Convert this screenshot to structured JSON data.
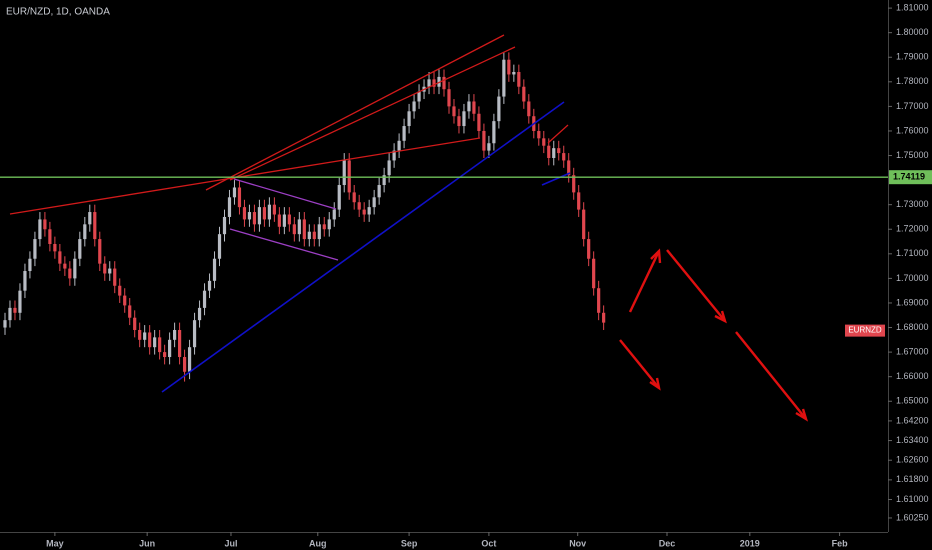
{
  "chart_data": {
    "type": "candlestick",
    "title": "EUR/NZD, 1D, OANDA",
    "symbol_tag": "EURNZD",
    "up_color": "#b8bcc4",
    "down_color": "#e0464e",
    "xlim": [
      -1,
      177
    ],
    "xticks": [
      {
        "value": 10,
        "label": "May"
      },
      {
        "value": 28.5,
        "label": "Jun"
      },
      {
        "value": 45.3,
        "label": "Jul"
      },
      {
        "value": 62.7,
        "label": "Aug"
      },
      {
        "value": 81,
        "label": "Sep"
      },
      {
        "value": 97,
        "label": "Oct"
      },
      {
        "value": 114.8,
        "label": "Nov"
      },
      {
        "value": 132.7,
        "label": "Dec"
      },
      {
        "value": 149.3,
        "label": "2019"
      },
      {
        "value": 167.3,
        "label": "Feb"
      }
    ],
    "ylim": [
      1.5976,
      1.8133
    ],
    "yticks": [
      {
        "value": 1.81,
        "label": "1.81000"
      },
      {
        "value": 1.8,
        "label": "1.80000"
      },
      {
        "value": 1.79,
        "label": "1.79000"
      },
      {
        "value": 1.78,
        "label": "1.78000"
      },
      {
        "value": 1.77,
        "label": "1.77000"
      },
      {
        "value": 1.76,
        "label": "1.76000"
      },
      {
        "value": 1.75,
        "label": "1.75000"
      },
      {
        "value": 1.73,
        "label": "1.73000"
      },
      {
        "value": 1.72,
        "label": "1.72000"
      },
      {
        "value": 1.71,
        "label": "1.71000"
      },
      {
        "value": 1.7,
        "label": "1.70000"
      },
      {
        "value": 1.69,
        "label": "1.69000"
      },
      {
        "value": 1.68,
        "label": "1.68000"
      },
      {
        "value": 1.67,
        "label": "1.67000"
      },
      {
        "value": 1.66,
        "label": "1.66000"
      },
      {
        "value": 1.65,
        "label": "1.65000"
      },
      {
        "value": 1.642,
        "label": "1.64200"
      },
      {
        "value": 1.634,
        "label": "1.63400"
      },
      {
        "value": 1.626,
        "label": "1.62600"
      },
      {
        "value": 1.618,
        "label": "1.61800"
      },
      {
        "value": 1.61,
        "label": "1.61000"
      },
      {
        "value": 1.6025,
        "label": "1.60250"
      }
    ],
    "price_line": {
      "value": 1.74119,
      "label": "1.74119",
      "color": "#6fbf5a"
    },
    "open": [
      1.68,
      1.683,
      1.688,
      1.686,
      1.695,
      1.703,
      1.708,
      1.716,
      1.724,
      1.72,
      1.714,
      1.711,
      1.706,
      1.704,
      1.7,
      1.708,
      1.716,
      1.722,
      1.727,
      1.716,
      1.706,
      1.702,
      1.704,
      1.697,
      1.693,
      1.689,
      1.684,
      1.679,
      1.675,
      1.678,
      1.672,
      1.676,
      1.67,
      1.668,
      1.675,
      1.679,
      1.668,
      1.662,
      1.672,
      1.683,
      1.688,
      1.695,
      1.699,
      1.708,
      1.718,
      1.725,
      1.733,
      1.737,
      1.729,
      1.724,
      1.727,
      1.722,
      1.729,
      1.724,
      1.73,
      1.726,
      1.721,
      1.726,
      1.722,
      1.718,
      1.724,
      1.716,
      1.719,
      1.716,
      1.722,
      1.72,
      1.724,
      1.728,
      1.738,
      1.748,
      1.735,
      1.731,
      1.728,
      1.726,
      1.729,
      1.733,
      1.738,
      1.742,
      1.748,
      1.752,
      1.756,
      1.762,
      1.768,
      1.772,
      1.776,
      1.778,
      1.781,
      1.778,
      1.782,
      1.777,
      1.77,
      1.766,
      1.762,
      1.768,
      1.772,
      1.767,
      1.76,
      1.752,
      1.755,
      1.764,
      1.774,
      1.789,
      1.783,
      1.784,
      1.778,
      1.772,
      1.766,
      1.76,
      1.757,
      1.754,
      1.749,
      1.753,
      1.751,
      1.748,
      1.742,
      1.735,
      1.728,
      1.716,
      1.708,
      1.696,
      1.686
    ],
    "high": [
      1.686,
      1.691,
      1.691,
      1.698,
      1.706,
      1.711,
      1.719,
      1.727,
      1.727,
      1.723,
      1.717,
      1.714,
      1.709,
      1.707,
      1.711,
      1.719,
      1.725,
      1.73,
      1.73,
      1.719,
      1.709,
      1.707,
      1.707,
      1.7,
      1.696,
      1.692,
      1.687,
      1.682,
      1.681,
      1.681,
      1.679,
      1.679,
      1.673,
      1.678,
      1.682,
      1.682,
      1.671,
      1.675,
      1.686,
      1.691,
      1.698,
      1.702,
      1.711,
      1.721,
      1.728,
      1.736,
      1.74,
      1.74,
      1.732,
      1.73,
      1.73,
      1.732,
      1.732,
      1.733,
      1.733,
      1.729,
      1.729,
      1.729,
      1.725,
      1.727,
      1.727,
      1.722,
      1.722,
      1.725,
      1.725,
      1.727,
      1.731,
      1.741,
      1.751,
      1.751,
      1.738,
      1.734,
      1.731,
      1.732,
      1.736,
      1.741,
      1.745,
      1.751,
      1.755,
      1.759,
      1.765,
      1.771,
      1.775,
      1.779,
      1.781,
      1.784,
      1.784,
      1.785,
      1.785,
      1.78,
      1.773,
      1.769,
      1.771,
      1.775,
      1.775,
      1.77,
      1.763,
      1.758,
      1.767,
      1.777,
      1.792,
      1.792,
      1.787,
      1.787,
      1.781,
      1.775,
      1.769,
      1.763,
      1.76,
      1.757,
      1.756,
      1.756,
      1.754,
      1.751,
      1.745,
      1.738,
      1.731,
      1.719,
      1.711,
      1.699,
      1.689
    ],
    "low": [
      1.677,
      1.68,
      1.683,
      1.683,
      1.692,
      1.7,
      1.705,
      1.713,
      1.717,
      1.711,
      1.708,
      1.703,
      1.701,
      1.697,
      1.697,
      1.705,
      1.713,
      1.719,
      1.713,
      1.703,
      1.699,
      1.699,
      1.694,
      1.69,
      1.686,
      1.681,
      1.676,
      1.672,
      1.672,
      1.669,
      1.669,
      1.667,
      1.665,
      1.665,
      1.672,
      1.665,
      1.658,
      1.659,
      1.669,
      1.68,
      1.685,
      1.692,
      1.696,
      1.705,
      1.715,
      1.722,
      1.73,
      1.726,
      1.721,
      1.721,
      1.719,
      1.719,
      1.721,
      1.721,
      1.723,
      1.718,
      1.718,
      1.719,
      1.715,
      1.715,
      1.713,
      1.713,
      1.713,
      1.713,
      1.717,
      1.717,
      1.721,
      1.725,
      1.735,
      1.732,
      1.728,
      1.725,
      1.723,
      1.723,
      1.726,
      1.73,
      1.735,
      1.739,
      1.745,
      1.749,
      1.753,
      1.759,
      1.765,
      1.769,
      1.773,
      1.775,
      1.775,
      1.775,
      1.774,
      1.767,
      1.763,
      1.759,
      1.759,
      1.765,
      1.764,
      1.757,
      1.749,
      1.749,
      1.752,
      1.761,
      1.771,
      1.78,
      1.78,
      1.775,
      1.769,
      1.763,
      1.757,
      1.754,
      1.751,
      1.746,
      1.746,
      1.748,
      1.745,
      1.739,
      1.732,
      1.725,
      1.713,
      1.705,
      1.693,
      1.683,
      1.679
    ],
    "close": [
      1.683,
      1.688,
      1.686,
      1.695,
      1.703,
      1.708,
      1.716,
      1.724,
      1.72,
      1.714,
      1.711,
      1.706,
      1.704,
      1.7,
      1.708,
      1.716,
      1.722,
      1.727,
      1.716,
      1.706,
      1.702,
      1.704,
      1.697,
      1.693,
      1.689,
      1.684,
      1.679,
      1.675,
      1.678,
      1.672,
      1.676,
      1.67,
      1.668,
      1.675,
      1.679,
      1.668,
      1.662,
      1.672,
      1.683,
      1.688,
      1.695,
      1.699,
      1.708,
      1.718,
      1.725,
      1.733,
      1.737,
      1.729,
      1.724,
      1.727,
      1.722,
      1.729,
      1.724,
      1.73,
      1.726,
      1.721,
      1.726,
      1.722,
      1.718,
      1.724,
      1.716,
      1.719,
      1.716,
      1.722,
      1.72,
      1.724,
      1.728,
      1.738,
      1.748,
      1.735,
      1.731,
      1.728,
      1.726,
      1.729,
      1.733,
      1.738,
      1.742,
      1.748,
      1.752,
      1.756,
      1.762,
      1.768,
      1.772,
      1.776,
      1.778,
      1.781,
      1.778,
      1.782,
      1.777,
      1.77,
      1.766,
      1.762,
      1.768,
      1.772,
      1.767,
      1.76,
      1.752,
      1.755,
      1.764,
      1.774,
      1.789,
      1.783,
      1.784,
      1.778,
      1.772,
      1.766,
      1.76,
      1.757,
      1.754,
      1.749,
      1.753,
      1.751,
      1.748,
      1.742,
      1.735,
      1.728,
      1.716,
      1.708,
      1.696,
      1.686,
      1.682
    ]
  }
}
